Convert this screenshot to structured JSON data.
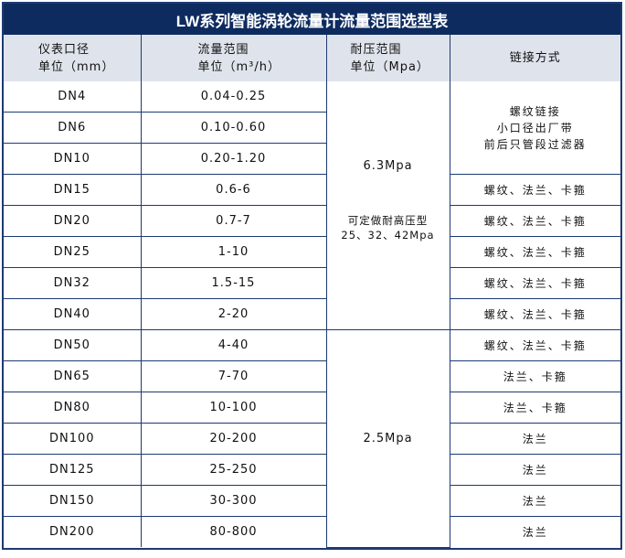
{
  "title": "LW系列智能涡轮流量计流量范围选型表",
  "headers": {
    "diameter": [
      "仪表口径",
      "单位（mm）"
    ],
    "flow": [
      "流量范围",
      "单位（m³/h）"
    ],
    "pressure": [
      "耐压范围",
      "单位（Mpa）"
    ],
    "connection": "链接方式"
  },
  "rows": [
    {
      "dn": "DN4",
      "flow": "0.04-0.25"
    },
    {
      "dn": "DN6",
      "flow": "0.10-0.60"
    },
    {
      "dn": "DN10",
      "flow": "0.20-1.20"
    },
    {
      "dn": "DN15",
      "flow": "0.6-6"
    },
    {
      "dn": "DN20",
      "flow": "0.7-7"
    },
    {
      "dn": "DN25",
      "flow": "1-10"
    },
    {
      "dn": "DN32",
      "flow": "1.5-15"
    },
    {
      "dn": "DN40",
      "flow": "2-20"
    },
    {
      "dn": "DN50",
      "flow": "4-40"
    },
    {
      "dn": "DN65",
      "flow": "7-70"
    },
    {
      "dn": "DN80",
      "flow": "10-100"
    },
    {
      "dn": "DN100",
      "flow": "20-200"
    },
    {
      "dn": "DN125",
      "flow": "25-250"
    },
    {
      "dn": "DN150",
      "flow": "30-300"
    },
    {
      "dn": "DN200",
      "flow": "80-800"
    }
  ],
  "pressure_groups": [
    {
      "value": "6.3Mpa",
      "note": [
        "可定做耐高压型",
        "25、32、42Mpa"
      ]
    },
    {
      "value": "2.5Mpa"
    }
  ],
  "connections": {
    "small": [
      "螺纹链接",
      "小口径出厂带",
      "前后只管段过滤器"
    ],
    "list": [
      "螺纹、法兰、卡箍",
      "螺纹、法兰、卡箍",
      "螺纹、法兰、卡箍",
      "螺纹、法兰、卡箍",
      "螺纹、法兰、卡箍",
      "螺纹、法兰、卡箍",
      "法兰、卡箍",
      "法兰、卡箍",
      "法兰",
      "法兰",
      "法兰",
      "法兰"
    ]
  }
}
